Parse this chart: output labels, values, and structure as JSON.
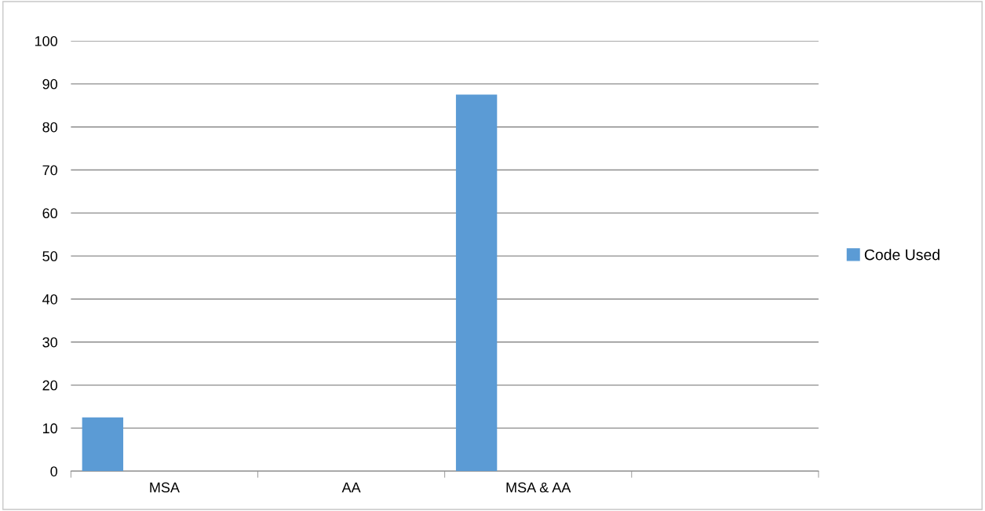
{
  "chart_data": {
    "type": "bar",
    "categories": [
      "MSA",
      "AA",
      "MSA & AA",
      null
    ],
    "series": [
      {
        "name": "Code Used",
        "color": "#5b9bd5",
        "values": [
          12.5,
          0,
          87.5,
          null
        ]
      }
    ],
    "ylim": [
      0,
      100
    ],
    "yticks": [
      0,
      10,
      20,
      30,
      40,
      50,
      60,
      70,
      80,
      90,
      100
    ],
    "grid": "y",
    "legend": "right"
  }
}
